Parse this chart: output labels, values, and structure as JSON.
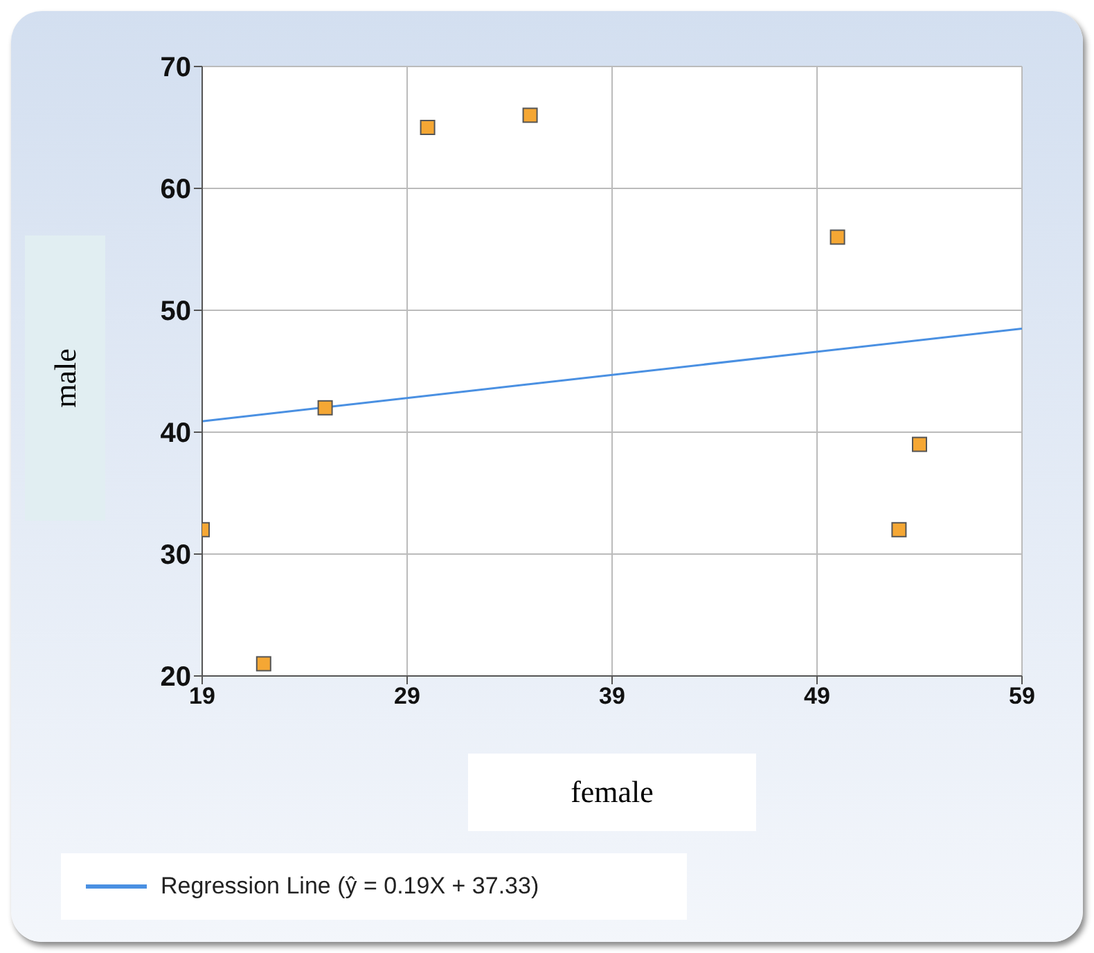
{
  "chart_data": {
    "type": "scatter",
    "xlabel": "female",
    "ylabel": "male",
    "xlim": [
      19,
      59
    ],
    "xticks": [
      19,
      29,
      39,
      49,
      59
    ],
    "ylim": [
      20,
      70
    ],
    "yticks": [
      20,
      30,
      40,
      50,
      60,
      70
    ],
    "grid": true,
    "legend": "bottom",
    "series": [
      {
        "type": "scatter",
        "color": "#f5a734",
        "marker": "square",
        "x": [
          19,
          22,
          25,
          30,
          35,
          50,
          53,
          54
        ],
        "values": [
          32,
          21,
          42,
          65,
          66,
          56,
          32,
          39
        ]
      },
      {
        "type": "line",
        "name": "Regression Line (ŷ = 0.19X + 37.33)",
        "color": "#4a90e2",
        "marker": "none",
        "line_style": "solid",
        "x": [
          19,
          59
        ],
        "values": [
          40.9,
          48.5
        ]
      }
    ]
  }
}
